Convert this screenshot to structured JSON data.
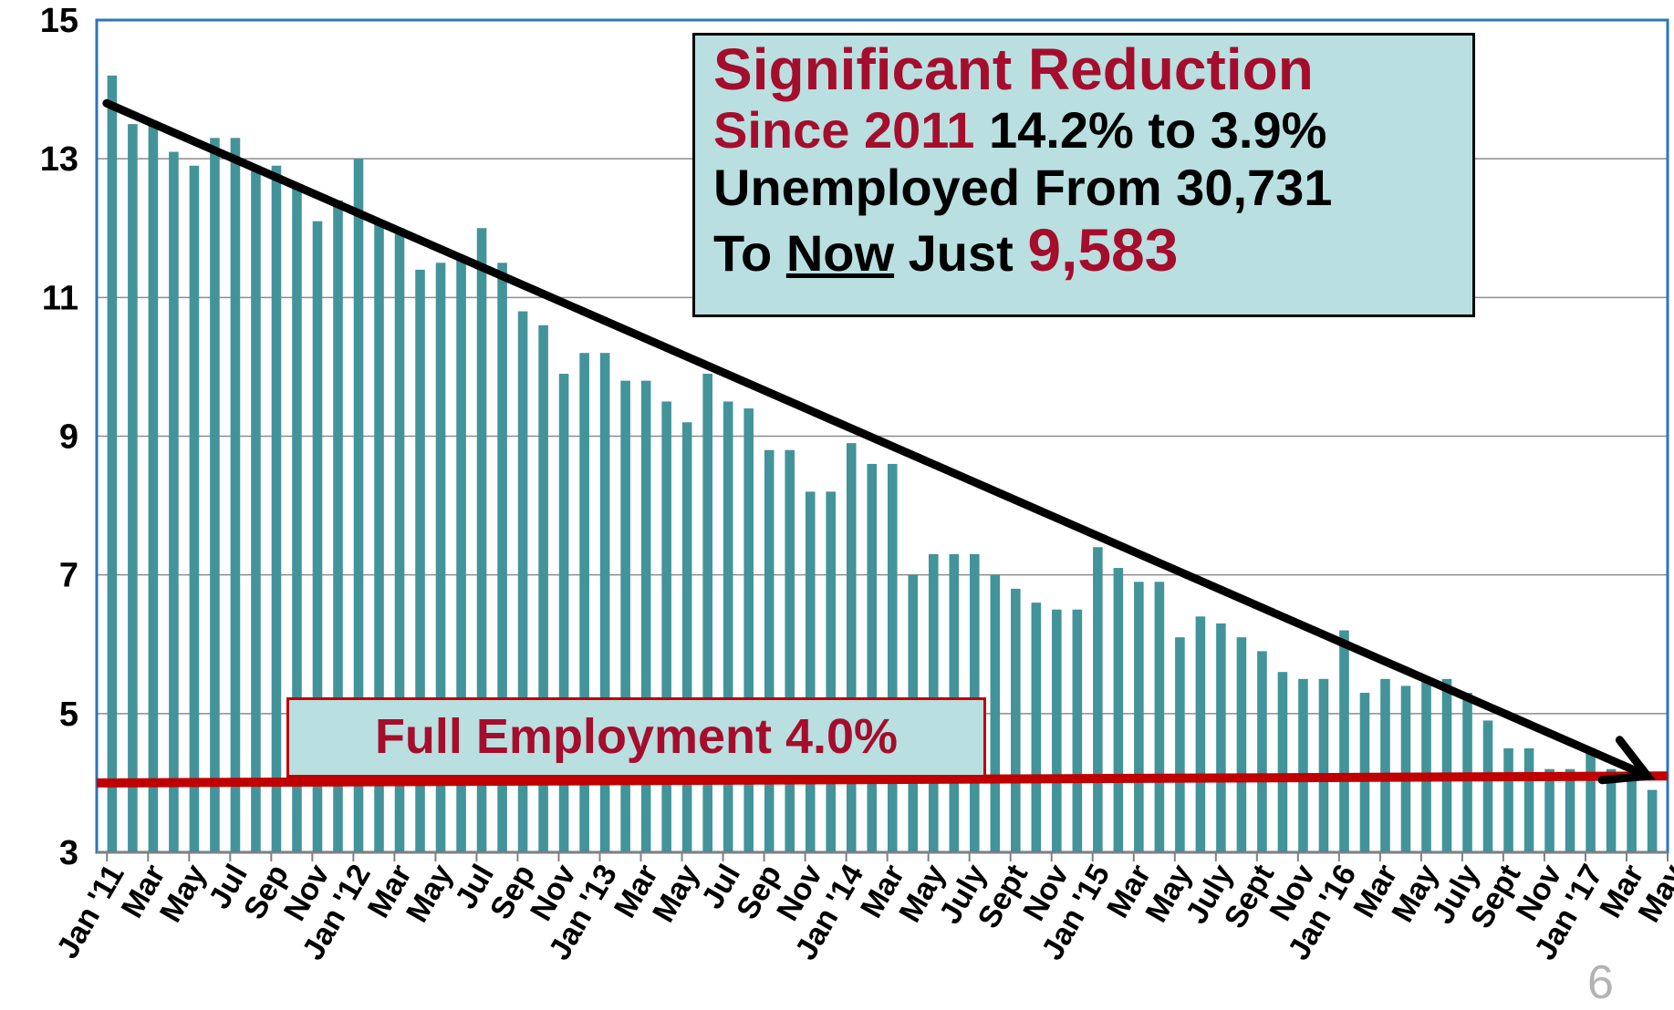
{
  "colors": {
    "bar": "#43939a",
    "trend_arrow": "#000000",
    "full_employment_line": "#c00000",
    "accent_red": "#a50d2c",
    "box_fill": "#b9dfe0"
  },
  "callout": {
    "title": "Significant Reduction",
    "since": "Since 2011",
    "range": " 14.2% to 3.9%",
    "line3": "Unemployed From 30,731",
    "to": "To ",
    "now": "Now",
    "just": " Just ",
    "count": "9,583"
  },
  "full_employment_label": "Full Employment 4.0%",
  "page_number": "6",
  "chart_data": {
    "type": "bar",
    "ylim": [
      3,
      15
    ],
    "yticks": [
      "3",
      "5",
      "7",
      "9",
      "11",
      "13",
      "15"
    ],
    "grid": true,
    "x_tick_labels": [
      "Jan '11",
      "Mar",
      "May",
      "Jul",
      "Sep",
      "Nov",
      "Jan '12",
      "Mar",
      "May",
      "Jul",
      "Sep",
      "Nov",
      "Jan '13",
      "Mar",
      "May",
      "Jul",
      "Sep",
      "Nov",
      "Jan '14",
      "Mar",
      "May",
      "July",
      "Sept",
      "Nov",
      "Jan '15",
      "Mar",
      "May",
      "July",
      "Sept",
      "Nov",
      "Jan '16",
      "Mar",
      "May",
      "July",
      "Sept",
      "Nov",
      "Jan '17",
      "Mar",
      "May"
    ],
    "values": [
      14.2,
      13.5,
      13.5,
      13.1,
      12.9,
      13.3,
      13.3,
      12.9,
      12.9,
      12.6,
      12.1,
      12.4,
      13.0,
      12.1,
      12.0,
      11.4,
      11.5,
      11.6,
      12.0,
      11.5,
      10.8,
      10.6,
      9.9,
      10.2,
      10.2,
      9.8,
      9.8,
      9.5,
      9.2,
      9.9,
      9.5,
      9.4,
      8.8,
      8.8,
      8.2,
      8.2,
      8.9,
      8.6,
      8.6,
      7.0,
      7.3,
      7.3,
      7.3,
      7.0,
      6.8,
      6.6,
      6.5,
      6.5,
      7.4,
      7.1,
      6.9,
      6.9,
      6.1,
      6.4,
      6.3,
      6.1,
      5.9,
      5.6,
      5.5,
      5.5,
      6.2,
      5.3,
      5.5,
      5.4,
      5.5,
      5.5,
      5.3,
      4.9,
      4.5,
      4.5,
      4.2,
      4.2,
      4.5,
      4.2,
      4.2,
      3.9
    ],
    "reference_line": {
      "value": 4.0,
      "label": "Full Employment 4.0%"
    },
    "trend_arrow": {
      "from": 13.8,
      "to": 4.1
    }
  }
}
